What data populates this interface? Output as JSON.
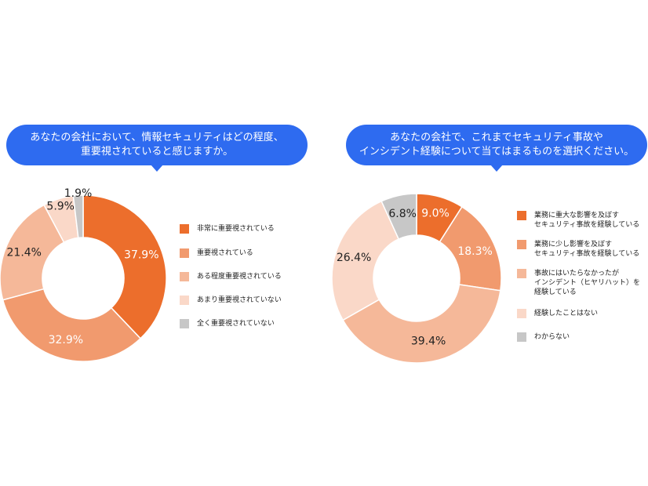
{
  "colors": {
    "accent_blue": "#2e6bf0",
    "slice_1": "#ec6e2c",
    "slice_2": "#f19a6e",
    "slice_3": "#f5b899",
    "slice_4": "#fad8c8",
    "slice_5": "#c7c7c7"
  },
  "left": {
    "question_lines": [
      "あなたの会社において、情報セキュリティはどの程度、",
      "重要視されていると感じますか。"
    ]
  },
  "right": {
    "question_lines": [
      "あなたの会社で、これまでセキュリティ事故や",
      "インシデント経験について当てはまるものを選択ください。"
    ]
  },
  "chart_data": [
    {
      "type": "pie",
      "title": "",
      "categories": [
        "非常に重要視されている",
        "重要視されている",
        "ある程度重要視されている",
        "あまり重要視されていない",
        "全く重要視されていない"
      ],
      "values": [
        37.9,
        32.9,
        21.4,
        5.9,
        1.9
      ],
      "value_labels": [
        "37.9%",
        "32.9%",
        "21.4%",
        "5.9%",
        "1.9%"
      ],
      "colors": [
        "#ec6e2c",
        "#f19a6e",
        "#f5b899",
        "#fad8c8",
        "#c7c7c7"
      ],
      "legend_position": "right"
    },
    {
      "type": "pie",
      "title": "",
      "categories": [
        "業務に重大な影響を及ぼす\nセキュリティ事故を経験している",
        "業務に少し影響を及ぼす\nセキュリティ事故を経験している",
        "事故にはいたらなかったが\nインシデント（ヒヤリハット）を\n経験している",
        "経験したことはない",
        "わからない"
      ],
      "values": [
        9.0,
        18.3,
        39.4,
        26.4,
        6.8
      ],
      "value_labels": [
        "9.0%",
        "18.3%",
        "39.4%",
        "26.4%",
        "6.8%"
      ],
      "colors": [
        "#ec6e2c",
        "#f19a6e",
        "#f5b899",
        "#fad8c8",
        "#c7c7c7"
      ],
      "legend_position": "right"
    }
  ]
}
